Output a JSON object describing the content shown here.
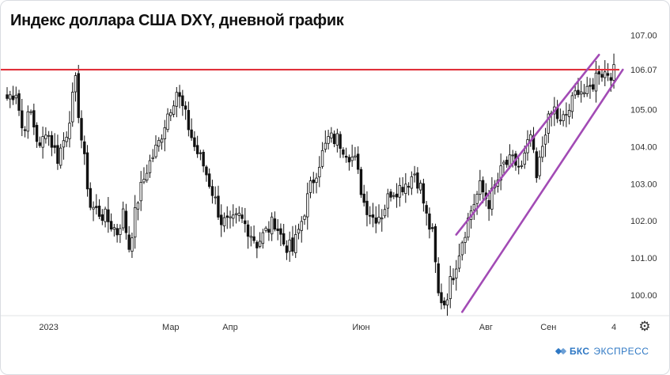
{
  "title": "Индекс доллара США DXY, дневной график",
  "brand": {
    "name": "БКС",
    "subtitle": "ЭКСПРЕСС"
  },
  "settings_icon": "gear-icon",
  "colors": {
    "up": "#ffffff",
    "down": "#111111",
    "resistance": "#e0313b",
    "channel": "#a24bb5",
    "brand": "#2f78c4",
    "axis_line": "#e1e3e6"
  },
  "chart_data": {
    "type": "candlestick",
    "title": "Индекс доллара США DXY, дневной график",
    "y_ticks": [
      "107.00",
      "106.07",
      "105.00",
      "104.00",
      "103.00",
      "102.00",
      "101.00",
      "100.00"
    ],
    "y_tick_values": [
      107.0,
      106.07,
      105.0,
      104.0,
      103.0,
      102.0,
      101.0,
      100.0
    ],
    "ylim": [
      99.45,
      107.2
    ],
    "x_ticks": [
      "2023",
      "Мар",
      "Апр",
      "Июн",
      "Авг",
      "Сен",
      "4"
    ],
    "x_tick_index": [
      14,
      55,
      75,
      119,
      161,
      182,
      204
    ],
    "n_bars": 205,
    "resistance_level": 106.07,
    "channel_upper": {
      "from": [
        151,
        101.63
      ],
      "to": [
        199,
        106.47
      ]
    },
    "channel_lower": {
      "from": [
        153,
        99.55
      ],
      "to": [
        207,
        106.07
      ]
    },
    "anchors": [
      [
        0,
        105.3
      ],
      [
        3,
        105.5
      ],
      [
        5,
        104.5
      ],
      [
        8,
        104.9
      ],
      [
        11,
        103.9
      ],
      [
        13,
        104.5
      ],
      [
        17,
        103.7
      ],
      [
        20,
        104.4
      ],
      [
        23,
        105.7
      ],
      [
        25,
        104.2
      ],
      [
        28,
        102.4
      ],
      [
        33,
        102.1
      ],
      [
        37,
        101.7
      ],
      [
        39,
        102.2
      ],
      [
        41,
        101.3
      ],
      [
        44,
        102.6
      ],
      [
        47,
        103.4
      ],
      [
        51,
        104.1
      ],
      [
        54,
        104.9
      ],
      [
        57,
        105.5
      ],
      [
        60,
        104.8
      ],
      [
        63,
        104.0
      ],
      [
        66,
        103.5
      ],
      [
        69,
        102.8
      ],
      [
        72,
        102.0
      ],
      [
        75,
        101.9
      ],
      [
        78,
        102.1
      ],
      [
        81,
        101.8
      ],
      [
        84,
        101.4
      ],
      [
        87,
        101.7
      ],
      [
        90,
        102.0
      ],
      [
        93,
        101.4
      ],
      [
        96,
        101.2
      ],
      [
        99,
        102.0
      ],
      [
        102,
        102.9
      ],
      [
        105,
        103.6
      ],
      [
        108,
        104.2
      ],
      [
        111,
        104.2
      ],
      [
        114,
        103.9
      ],
      [
        117,
        103.6
      ],
      [
        120,
        102.5
      ],
      [
        123,
        102.1
      ],
      [
        126,
        102.2
      ],
      [
        129,
        102.8
      ],
      [
        132,
        102.9
      ],
      [
        135,
        103.1
      ],
      [
        137,
        103.3
      ],
      [
        139,
        102.9
      ],
      [
        141,
        102.1
      ],
      [
        143,
        101.6
      ],
      [
        145,
        100.0
      ],
      [
        147,
        99.8
      ],
      [
        150,
        100.6
      ],
      [
        153,
        101.5
      ],
      [
        156,
        102.3
      ],
      [
        159,
        102.9
      ],
      [
        162,
        102.5
      ],
      [
        164,
        102.9
      ],
      [
        167,
        103.5
      ],
      [
        170,
        103.6
      ],
      [
        173,
        103.4
      ],
      [
        176,
        104.3
      ],
      [
        178,
        103.1
      ],
      [
        181,
        104.5
      ],
      [
        184,
        105.0
      ],
      [
        186,
        104.6
      ],
      [
        189,
        105.0
      ],
      [
        192,
        105.6
      ],
      [
        195,
        105.4
      ],
      [
        197,
        105.7
      ],
      [
        199,
        106.1
      ],
      [
        200,
        106.0
      ]
    ]
  }
}
